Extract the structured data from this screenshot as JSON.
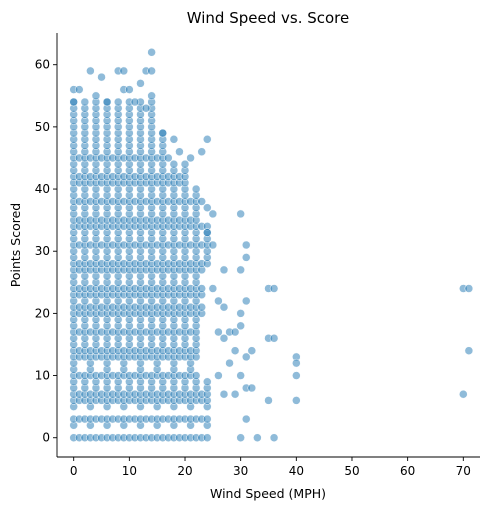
{
  "chart_data": {
    "type": "scatter",
    "title": "Wind Speed vs. Score",
    "xlabel": "Wind Speed (MPH)",
    "ylabel": "Points Scored",
    "xlim": [
      -3,
      73
    ],
    "ylim": [
      -3.1,
      65.1
    ],
    "xticks": [
      0,
      10,
      20,
      30,
      40,
      50,
      60,
      70
    ],
    "yticks": [
      0,
      10,
      20,
      30,
      40,
      50,
      60
    ],
    "grid": false,
    "legend": "none",
    "color": "#1f77b4",
    "score_levels": [
      0,
      2,
      3,
      5,
      6,
      7,
      8,
      9,
      10,
      11,
      12,
      13,
      14,
      15,
      16,
      17,
      18,
      19,
      20,
      21,
      22,
      23,
      24,
      25,
      26,
      27,
      28,
      29,
      30,
      31,
      32,
      33,
      34,
      35,
      36,
      37,
      38,
      39,
      40,
      41,
      42,
      43,
      44,
      45,
      46,
      47,
      48,
      49,
      50,
      51,
      52,
      53,
      54,
      55,
      56,
      57,
      58,
      59,
      60,
      62
    ],
    "outliers": [
      {
        "x": 14,
        "y": 62
      },
      {
        "x": 3,
        "y": 59
      },
      {
        "x": 8,
        "y": 59
      },
      {
        "x": 9,
        "y": 59
      },
      {
        "x": 13,
        "y": 59
      },
      {
        "x": 14,
        "y": 59
      },
      {
        "x": 0,
        "y": 56
      },
      {
        "x": 1,
        "y": 56
      },
      {
        "x": 5,
        "y": 58
      },
      {
        "x": 9,
        "y": 56
      },
      {
        "x": 10,
        "y": 56
      },
      {
        "x": 12,
        "y": 57
      },
      {
        "x": 14,
        "y": 55
      },
      {
        "x": 0,
        "y": 54
      },
      {
        "x": 4,
        "y": 55
      },
      {
        "x": 6,
        "y": 54
      },
      {
        "x": 11,
        "y": 54
      },
      {
        "x": 13,
        "y": 53
      },
      {
        "x": 16,
        "y": 49
      },
      {
        "x": 18,
        "y": 48
      },
      {
        "x": 19,
        "y": 46
      },
      {
        "x": 21,
        "y": 45
      },
      {
        "x": 23,
        "y": 46
      },
      {
        "x": 24,
        "y": 48
      },
      {
        "x": 22,
        "y": 40
      },
      {
        "x": 23,
        "y": 38
      },
      {
        "x": 24,
        "y": 37
      },
      {
        "x": 25,
        "y": 36
      },
      {
        "x": 24,
        "y": 33
      },
      {
        "x": 25,
        "y": 31
      },
      {
        "x": 30,
        "y": 36
      },
      {
        "x": 31,
        "y": 31
      },
      {
        "x": 31,
        "y": 29
      },
      {
        "x": 27,
        "y": 27
      },
      {
        "x": 30,
        "y": 27
      },
      {
        "x": 25,
        "y": 24
      },
      {
        "x": 26,
        "y": 22
      },
      {
        "x": 27,
        "y": 21
      },
      {
        "x": 31,
        "y": 22
      },
      {
        "x": 30,
        "y": 20
      },
      {
        "x": 30,
        "y": 18
      },
      {
        "x": 26,
        "y": 17
      },
      {
        "x": 28,
        "y": 17
      },
      {
        "x": 29,
        "y": 17
      },
      {
        "x": 27,
        "y": 16
      },
      {
        "x": 35,
        "y": 24
      },
      {
        "x": 36,
        "y": 24
      },
      {
        "x": 35,
        "y": 16
      },
      {
        "x": 36,
        "y": 16
      },
      {
        "x": 29,
        "y": 14
      },
      {
        "x": 32,
        "y": 14
      },
      {
        "x": 31,
        "y": 13
      },
      {
        "x": 28,
        "y": 12
      },
      {
        "x": 26,
        "y": 10
      },
      {
        "x": 30,
        "y": 10
      },
      {
        "x": 31,
        "y": 8
      },
      {
        "x": 32,
        "y": 8
      },
      {
        "x": 29,
        "y": 7
      },
      {
        "x": 27,
        "y": 7
      },
      {
        "x": 35,
        "y": 6
      },
      {
        "x": 30,
        "y": 0
      },
      {
        "x": 33,
        "y": 0
      },
      {
        "x": 36,
        "y": 0
      },
      {
        "x": 31,
        "y": 3
      },
      {
        "x": 40,
        "y": 13
      },
      {
        "x": 40,
        "y": 12
      },
      {
        "x": 40,
        "y": 10
      },
      {
        "x": 40,
        "y": 6
      },
      {
        "x": 70,
        "y": 24
      },
      {
        "x": 71,
        "y": 24
      },
      {
        "x": 71,
        "y": 14
      },
      {
        "x": 70,
        "y": 7
      }
    ],
    "point_color": "#1f77b4"
  }
}
